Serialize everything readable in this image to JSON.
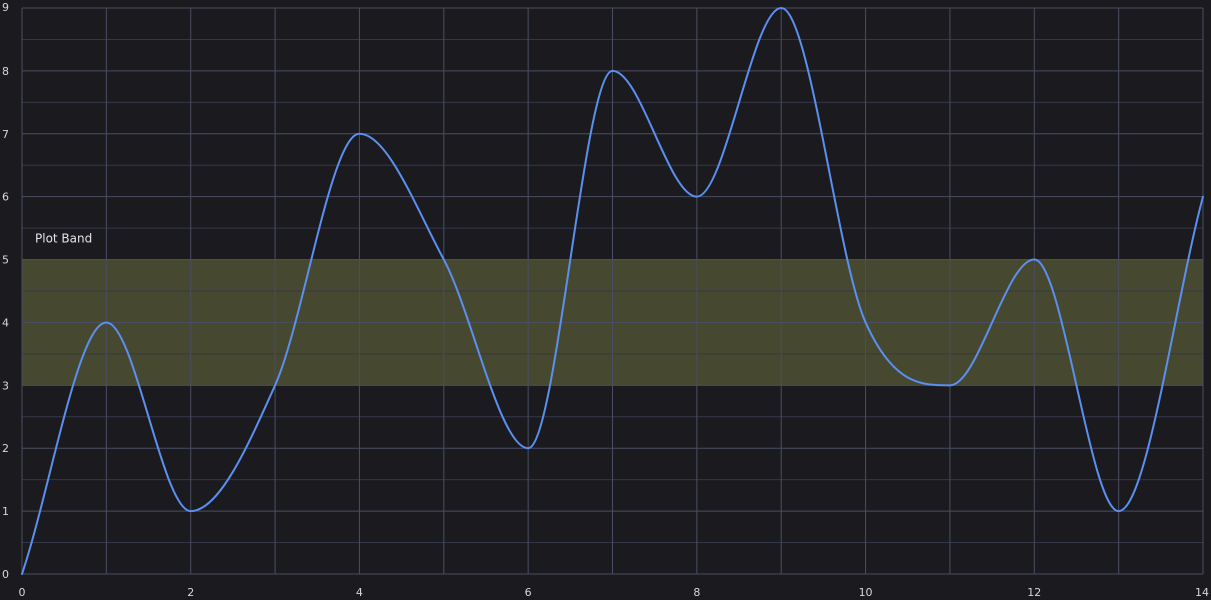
{
  "colors": {
    "background": "#1b1b1f",
    "grid_major": "#4a4e62",
    "grid_minor": "#34374a",
    "line": "#5b8ff0",
    "band_fill": "#474830",
    "band_edge": "#6c6d4e",
    "tick_text": "#d6d7dc",
    "band_label_text": "#e4e4e8"
  },
  "chart_data": {
    "type": "line",
    "curve": "smooth",
    "grid": true,
    "xlim": [
      0,
      14
    ],
    "ylim": [
      0,
      9
    ],
    "x_ticks": [
      "0",
      "2",
      "4",
      "6",
      "8",
      "10",
      "12",
      "14"
    ],
    "y_ticks": [
      "0",
      "1",
      "2",
      "3",
      "4",
      "5",
      "6",
      "7",
      "8",
      "9"
    ],
    "x_grid_values": [
      0,
      1,
      2,
      3,
      4,
      5,
      6,
      7,
      8,
      9,
      10,
      11,
      12,
      13,
      14
    ],
    "y_grid_values": [
      0,
      0.5,
      1,
      1.5,
      2,
      2.5,
      3,
      3.5,
      4,
      4.5,
      5,
      5.5,
      6,
      6.5,
      7,
      7.5,
      8,
      8.5,
      9
    ],
    "series": [
      {
        "x": [
          0,
          1,
          2,
          3,
          4,
          5,
          6,
          7,
          8,
          9,
          10,
          11,
          12,
          13,
          14
        ],
        "values": [
          0,
          4,
          1,
          3,
          7,
          5,
          2,
          8,
          6,
          9,
          4,
          3,
          5,
          1,
          6
        ]
      }
    ],
    "plot_band": {
      "from": 3,
      "to": 5,
      "label": "Plot Band"
    }
  }
}
